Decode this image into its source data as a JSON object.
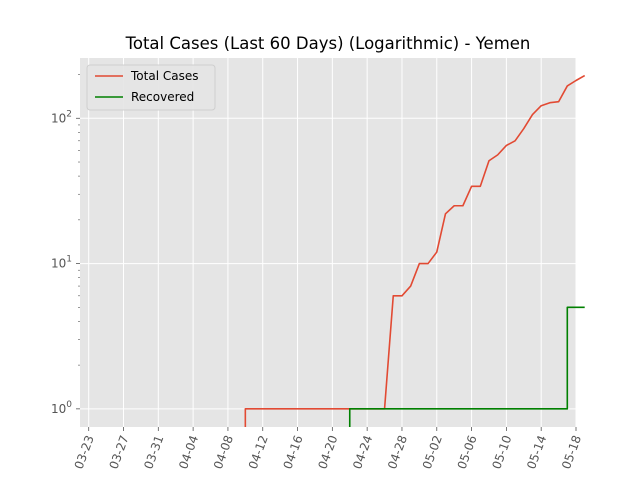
{
  "chart_data": {
    "type": "line",
    "title": "Total Cases (Last 60 Days) (Logarithmic) - Yemen",
    "xlabel": "",
    "ylabel": "",
    "x_axis_type": "date",
    "y_scale": "log",
    "xlim": [
      "2020-03-22",
      "2020-05-18"
    ],
    "ylim": [
      0.75,
      260
    ],
    "x_ticks": [
      "03-23",
      "03-27",
      "03-31",
      "04-04",
      "04-08",
      "04-12",
      "04-16",
      "04-20",
      "04-24",
      "04-28",
      "05-02",
      "05-06",
      "05-10",
      "05-14",
      "05-18"
    ],
    "y_ticks": [
      {
        "value": 1,
        "base": "10",
        "exp": "0"
      },
      {
        "value": 10,
        "base": "10",
        "exp": "1"
      },
      {
        "value": 100,
        "base": "10",
        "exp": "2"
      }
    ],
    "grid": true,
    "legend_position": "upper-left",
    "series": [
      {
        "name": "Total Cases",
        "color": "#e24a33",
        "step": false,
        "points": [
          [
            "2020-04-10",
            1
          ],
          [
            "2020-04-11",
            1
          ],
          [
            "2020-04-12",
            1
          ],
          [
            "2020-04-13",
            1
          ],
          [
            "2020-04-14",
            1
          ],
          [
            "2020-04-15",
            1
          ],
          [
            "2020-04-16",
            1
          ],
          [
            "2020-04-17",
            1
          ],
          [
            "2020-04-18",
            1
          ],
          [
            "2020-04-19",
            1
          ],
          [
            "2020-04-20",
            1
          ],
          [
            "2020-04-21",
            1
          ],
          [
            "2020-04-22",
            1
          ],
          [
            "2020-04-23",
            1
          ],
          [
            "2020-04-24",
            1
          ],
          [
            "2020-04-25",
            1
          ],
          [
            "2020-04-26",
            1
          ],
          [
            "2020-04-27",
            6
          ],
          [
            "2020-04-28",
            6
          ],
          [
            "2020-04-29",
            7
          ],
          [
            "2020-04-30",
            10
          ],
          [
            "2020-05-01",
            10
          ],
          [
            "2020-05-02",
            12
          ],
          [
            "2020-05-03",
            22
          ],
          [
            "2020-05-04",
            25
          ],
          [
            "2020-05-05",
            25
          ],
          [
            "2020-05-06",
            34
          ],
          [
            "2020-05-07",
            34
          ],
          [
            "2020-05-08",
            51
          ],
          [
            "2020-05-09",
            56
          ],
          [
            "2020-05-10",
            65
          ],
          [
            "2020-05-11",
            70
          ],
          [
            "2020-05-12",
            85
          ],
          [
            "2020-05-13",
            106
          ],
          [
            "2020-05-14",
            122
          ],
          [
            "2020-05-15",
            128
          ],
          [
            "2020-05-16",
            130
          ],
          [
            "2020-05-17",
            167
          ],
          [
            "2020-05-18",
            182
          ],
          [
            "2020-05-19",
            197
          ]
        ]
      },
      {
        "name": "Recovered",
        "color": "#008000",
        "step": true,
        "points": [
          [
            "2020-04-22",
            1
          ],
          [
            "2020-04-23",
            1
          ],
          [
            "2020-05-16",
            1
          ],
          [
            "2020-05-17",
            5
          ],
          [
            "2020-05-19",
            5
          ]
        ]
      }
    ]
  }
}
